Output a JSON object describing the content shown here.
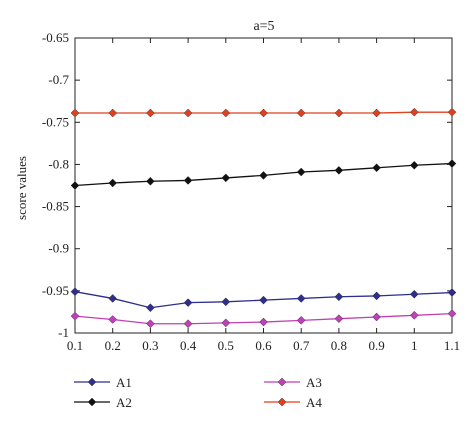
{
  "chart_data": {
    "type": "line",
    "title": "a=5",
    "xlabel": "",
    "ylabel": "score values",
    "x": [
      0.1,
      0.2,
      0.3,
      0.4,
      0.5,
      0.6,
      0.7,
      0.8,
      0.9,
      1,
      1.1
    ],
    "x_tick_labels": [
      "0.1",
      "0.2",
      "0.3",
      "0.4",
      "0.5",
      "0.6",
      "0.7",
      "0.8",
      "0.9",
      "1",
      "1.1"
    ],
    "y_tick_labels": [
      "-0.65",
      "-0.7",
      "-0.75",
      "-0.8",
      "-0.85",
      "-0.9",
      "-0.95",
      "-1"
    ],
    "y_ticks": [
      -0.65,
      -0.7,
      -0.75,
      -0.8,
      -0.85,
      -0.9,
      -0.95,
      -1
    ],
    "xlim": [
      0.1,
      1.1
    ],
    "ylim": [
      -1,
      -0.65
    ],
    "grid": false,
    "legend_position": "bottom",
    "series": [
      {
        "name": "A1",
        "color": "#2e2e8f",
        "values": [
          -0.951,
          -0.959,
          -0.97,
          -0.964,
          -0.963,
          -0.961,
          -0.959,
          -0.957,
          -0.956,
          -0.954,
          -0.952
        ]
      },
      {
        "name": "A2",
        "color": "#111111",
        "values": [
          -0.825,
          -0.822,
          -0.82,
          -0.819,
          -0.816,
          -0.813,
          -0.809,
          -0.807,
          -0.804,
          -0.801,
          -0.799
        ]
      },
      {
        "name": "A3",
        "color": "#c040b8",
        "values": [
          -0.98,
          -0.984,
          -0.989,
          -0.989,
          -0.988,
          -0.987,
          -0.985,
          -0.983,
          -0.981,
          -0.979,
          -0.977
        ]
      },
      {
        "name": "A4",
        "color": "#e0401c",
        "values": [
          -0.739,
          -0.739,
          -0.739,
          -0.739,
          -0.739,
          -0.739,
          -0.739,
          -0.739,
          -0.739,
          -0.738,
          -0.738
        ]
      }
    ]
  }
}
